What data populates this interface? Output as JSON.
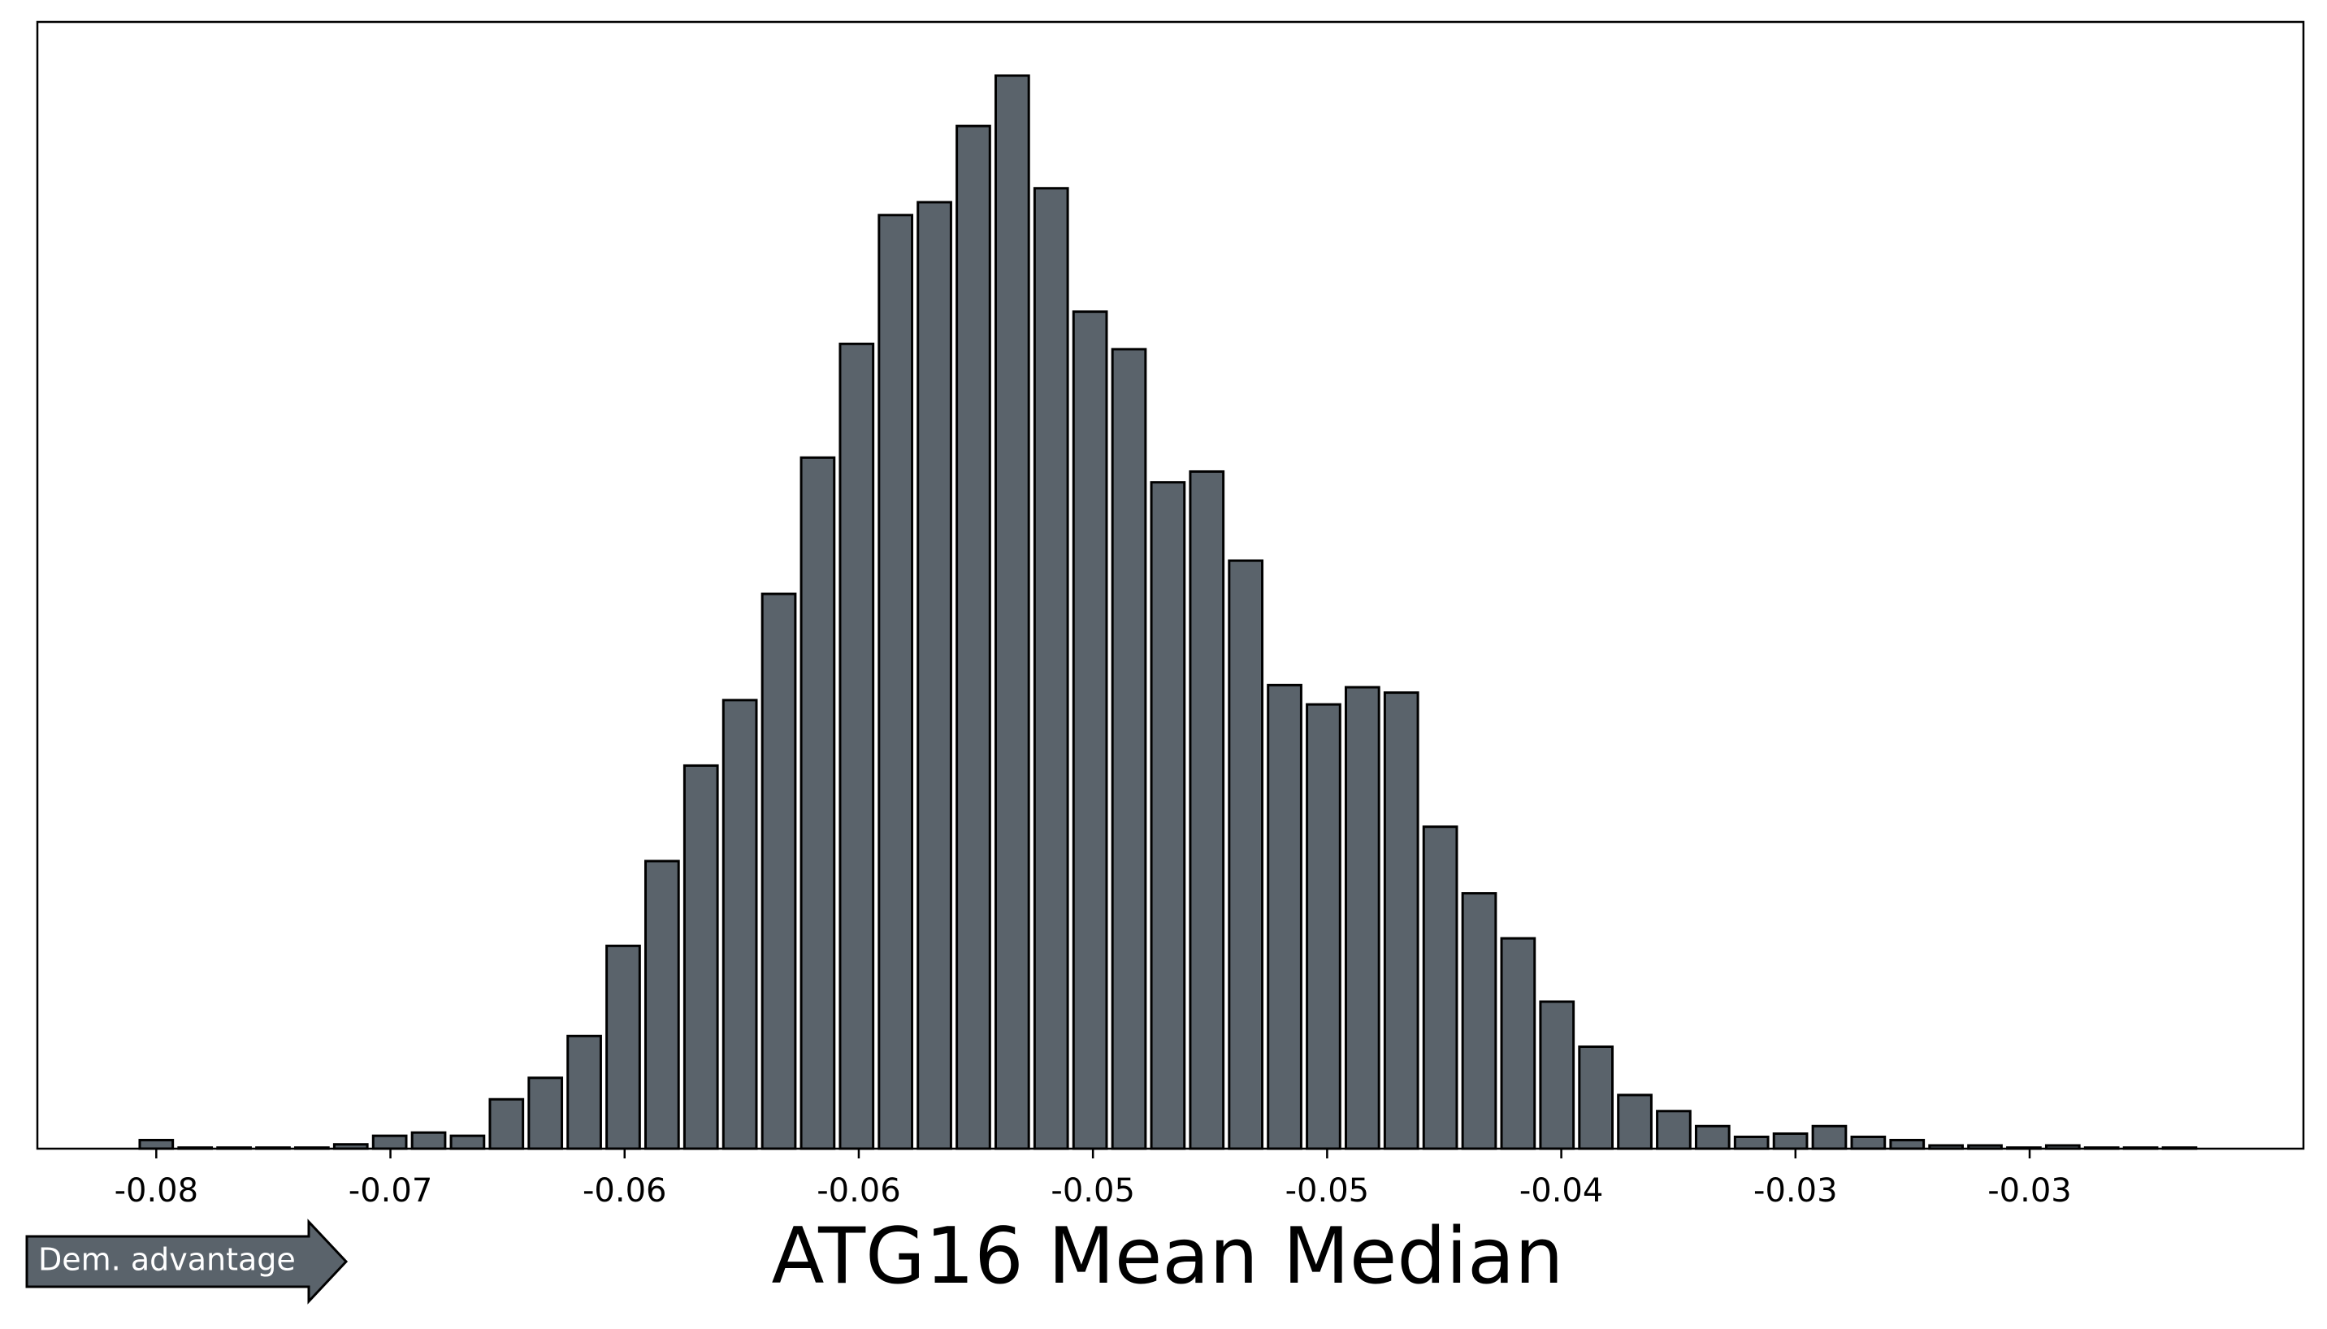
{
  "chart_data": {
    "type": "histogram",
    "title": "ATG16 Mean Median",
    "annotation": "Dem. advantage",
    "color": "#5a636b",
    "edgecolor": "#000000",
    "bins": [
      -0.07844,
      -0.07736,
      -0.07628,
      -0.0752,
      -0.07412,
      -0.07304,
      -0.07196,
      -0.07088,
      -0.0698,
      -0.06872,
      -0.06764,
      -0.06656,
      -0.06548,
      -0.0644,
      -0.06332,
      -0.06224,
      -0.06116,
      -0.06008,
      -0.059,
      -0.05792,
      -0.05684,
      -0.05576,
      -0.05468,
      -0.0536,
      -0.05252,
      -0.05144,
      -0.05036,
      -0.04928,
      -0.0482,
      -0.04712,
      -0.04604,
      -0.04496,
      -0.04388,
      -0.0428,
      -0.04172,
      -0.04064,
      -0.03956,
      -0.03848,
      -0.0374,
      -0.03632,
      -0.03524,
      -0.03416,
      -0.03308,
      -0.032,
      -0.03092,
      -0.02984,
      -0.02876,
      -0.02768,
      -0.0266,
      -0.02552,
      -0.02444,
      -0.02336,
      -0.02228,
      -0.0212
    ],
    "values": [
      0.8,
      0.1,
      0.1,
      0.1,
      0.1,
      0.4,
      1.2,
      1.5,
      1.2,
      4.6,
      6.6,
      10.5,
      18.9,
      26.8,
      35.7,
      41.8,
      51.7,
      64.4,
      75.0,
      87.0,
      88.2,
      95.3,
      100,
      89.5,
      78.0,
      74.5,
      62.1,
      63.1,
      54.8,
      43.2,
      41.4,
      43.0,
      42.5,
      30.0,
      23.8,
      19.6,
      13.7,
      9.5,
      5.0,
      3.5,
      2.1,
      1.1,
      1.4,
      2.1,
      1.1,
      0.8,
      0.3,
      0.3,
      0.1,
      0.3,
      0.1,
      0.1,
      0.1
    ],
    "xlim": [
      -0.0812,
      -0.0183
    ],
    "ylim": [
      0,
      105
    ],
    "xticks": [
      {
        "value": -0.0779,
        "label": "-0.08"
      },
      {
        "value": -0.0714,
        "label": "-0.07"
      },
      {
        "value": -0.0649,
        "label": "-0.06"
      },
      {
        "value": -0.0584,
        "label": "-0.06"
      },
      {
        "value": -0.0519,
        "label": "-0.05"
      },
      {
        "value": -0.0454,
        "label": "-0.05"
      },
      {
        "value": -0.0389,
        "label": "-0.04"
      },
      {
        "value": -0.0324,
        "label": "-0.03"
      },
      {
        "value": -0.0259,
        "label": "-0.03"
      }
    ]
  }
}
